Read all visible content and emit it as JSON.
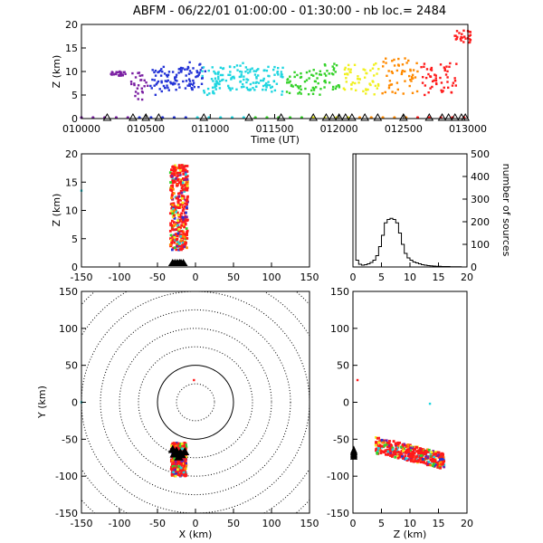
{
  "figure": {
    "title": "ABFM - 06/22/01 01:00:00 - 01:30:00 - nb loc.=   2484",
    "colors": {
      "purple": "#7a1fa2",
      "blue": "#2333d6",
      "cyan": "#1fd6e0",
      "green": "#35d22a",
      "yellow": "#f0f020",
      "orange": "#ff8a00",
      "red": "#ff1a1a",
      "station": "#000000"
    }
  },
  "chart_data": [
    {
      "id": "time-height",
      "type": "scatter",
      "xlabel": "Time (UT)",
      "ylabel": "Z (km)",
      "xlim": [
        "010000",
        "013000"
      ],
      "ylim": [
        0,
        20
      ],
      "x_ticks": [
        "010000",
        "010500",
        "011000",
        "011500",
        "012000",
        "012500",
        "013000"
      ],
      "y_ticks": [
        "0",
        "5",
        "10",
        "15",
        "20"
      ],
      "source_clusters": [
        {
          "t_min": 2.8,
          "z_range": [
            9,
            10
          ],
          "color": "purple"
        },
        {
          "t_min": 4.5,
          "z_range": [
            4,
            10
          ],
          "color": "purple"
        },
        {
          "t_min": 6.0,
          "z_range": [
            5,
            11
          ],
          "color": "blue"
        },
        {
          "t_min": 7.0,
          "z_range": [
            6,
            10
          ],
          "color": "blue"
        },
        {
          "t_min": 8.0,
          "z_range": [
            6,
            11
          ],
          "color": "blue"
        },
        {
          "t_min": 9.0,
          "z_range": [
            6,
            12
          ],
          "color": "blue"
        },
        {
          "t_min": 10.0,
          "z_range": [
            5,
            11
          ],
          "color": "cyan"
        },
        {
          "t_min": 11.0,
          "z_range": [
            6,
            11
          ],
          "color": "cyan"
        },
        {
          "t_min": 12.0,
          "z_range": [
            6,
            12
          ],
          "color": "cyan"
        },
        {
          "t_min": 13.0,
          "z_range": [
            6,
            11
          ],
          "color": "cyan"
        },
        {
          "t_min": 14.0,
          "z_range": [
            6,
            11
          ],
          "color": "cyan"
        },
        {
          "t_min": 15.0,
          "z_range": [
            5,
            11
          ],
          "color": "cyan"
        },
        {
          "t_min": 16.5,
          "z_range": [
            5,
            10
          ],
          "color": "green"
        },
        {
          "t_min": 18.0,
          "z_range": [
            5,
            11
          ],
          "color": "green"
        },
        {
          "t_min": 19.5,
          "z_range": [
            6,
            12
          ],
          "color": "green"
        },
        {
          "t_min": 21.0,
          "z_range": [
            6,
            12
          ],
          "color": "yellow"
        },
        {
          "t_min": 22.5,
          "z_range": [
            5,
            12
          ],
          "color": "yellow"
        },
        {
          "t_min": 24.0,
          "z_range": [
            5,
            13
          ],
          "color": "orange"
        },
        {
          "t_min": 25.5,
          "z_range": [
            5,
            13
          ],
          "color": "orange"
        },
        {
          "t_min": 27.0,
          "z_range": [
            5,
            12
          ],
          "color": "red"
        },
        {
          "t_min": 28.5,
          "z_range": [
            5,
            12
          ],
          "color": "red"
        },
        {
          "t_min": 29.6,
          "z_range": [
            16,
            19
          ],
          "color": "red"
        }
      ],
      "stations_t_min": [
        2,
        4,
        5,
        6,
        9.5,
        13,
        15.5,
        18,
        19,
        19.5,
        20,
        20.5,
        21,
        22,
        23,
        25,
        27,
        28,
        28.5,
        29,
        29.5,
        29.8
      ]
    },
    {
      "id": "x-height",
      "type": "scatter",
      "ylabel": "Z (km)",
      "xlim": [
        -150,
        150
      ],
      "ylim": [
        0,
        20
      ],
      "x_ticks": [
        "-150",
        "-100",
        "-50",
        "0",
        "50",
        "100",
        "150"
      ],
      "y_ticks": [
        "0",
        "5",
        "10",
        "15",
        "20"
      ],
      "cluster": {
        "x_range": [
          -33,
          -10
        ],
        "z_range": [
          3,
          18
        ],
        "color": "red"
      },
      "outliers": [
        {
          "x": -150,
          "z": 13.5,
          "color": "cyan"
        }
      ],
      "stations_x": [
        -30,
        -27,
        -24,
        -21,
        -19,
        -16
      ]
    },
    {
      "id": "height-histogram",
      "type": "bar",
      "ylabel": "number of sources",
      "xlim": [
        0,
        20
      ],
      "ylim": [
        0,
        500
      ],
      "x_ticks": [
        "0",
        "5",
        "10",
        "15",
        "20"
      ],
      "y_ticks": [
        "0",
        "100",
        "200",
        "300",
        "400",
        "500"
      ],
      "bin_width_km": 0.5,
      "counts": [
        500,
        30,
        12,
        8,
        10,
        14,
        20,
        30,
        50,
        90,
        140,
        195,
        210,
        215,
        210,
        195,
        150,
        100,
        60,
        40,
        30,
        22,
        18,
        14,
        10,
        8,
        6,
        5,
        4,
        3,
        3,
        2,
        2,
        2,
        1,
        1,
        1,
        1,
        0,
        0
      ]
    },
    {
      "id": "plan-view",
      "type": "scatter",
      "xlabel": "X (km)",
      "ylabel": "Y (km)",
      "xlim": [
        -150,
        150
      ],
      "ylim": [
        -150,
        150
      ],
      "x_ticks": [
        "-150",
        "-100",
        "-50",
        "0",
        "50",
        "100",
        "150"
      ],
      "y_ticks": [
        "-150",
        "-100",
        "-50",
        "0",
        "50",
        "100",
        "150"
      ],
      "range_rings_km": [
        25,
        50,
        75,
        100,
        125,
        150,
        175,
        200
      ],
      "cluster": {
        "x_range": [
          -32,
          -12
        ],
        "y_range": [
          -100,
          -55
        ],
        "color": "red"
      },
      "outliers": [
        {
          "x": -2,
          "y": 30,
          "color": "red"
        },
        {
          "x": -150,
          "y": 0,
          "color": "cyan"
        }
      ],
      "stations": [
        [
          -30,
          -65
        ],
        [
          -25,
          -67
        ],
        [
          -20,
          -70
        ],
        [
          -18,
          -72
        ],
        [
          -14,
          -68
        ],
        [
          -22,
          -75
        ],
        [
          -28,
          -71
        ]
      ]
    },
    {
      "id": "height-y",
      "type": "scatter",
      "xlabel": "Z (km)",
      "xlim": [
        0,
        20
      ],
      "ylim": [
        -150,
        150
      ],
      "x_ticks": [
        "0",
        "5",
        "10",
        "15",
        "20"
      ],
      "y_ticks": [
        "-150",
        "-100",
        "-50",
        "0",
        "50",
        "100",
        "150"
      ],
      "cluster": {
        "z_range": [
          4,
          16
        ],
        "y_range": [
          -90,
          -50
        ],
        "color": "red"
      },
      "outliers": [
        {
          "z": 0.8,
          "y": 30,
          "color": "red"
        },
        {
          "z": 13.5,
          "y": -2,
          "color": "cyan"
        }
      ],
      "stations_y": [
        -66,
        -68,
        -70,
        -72,
        -74
      ]
    }
  ]
}
